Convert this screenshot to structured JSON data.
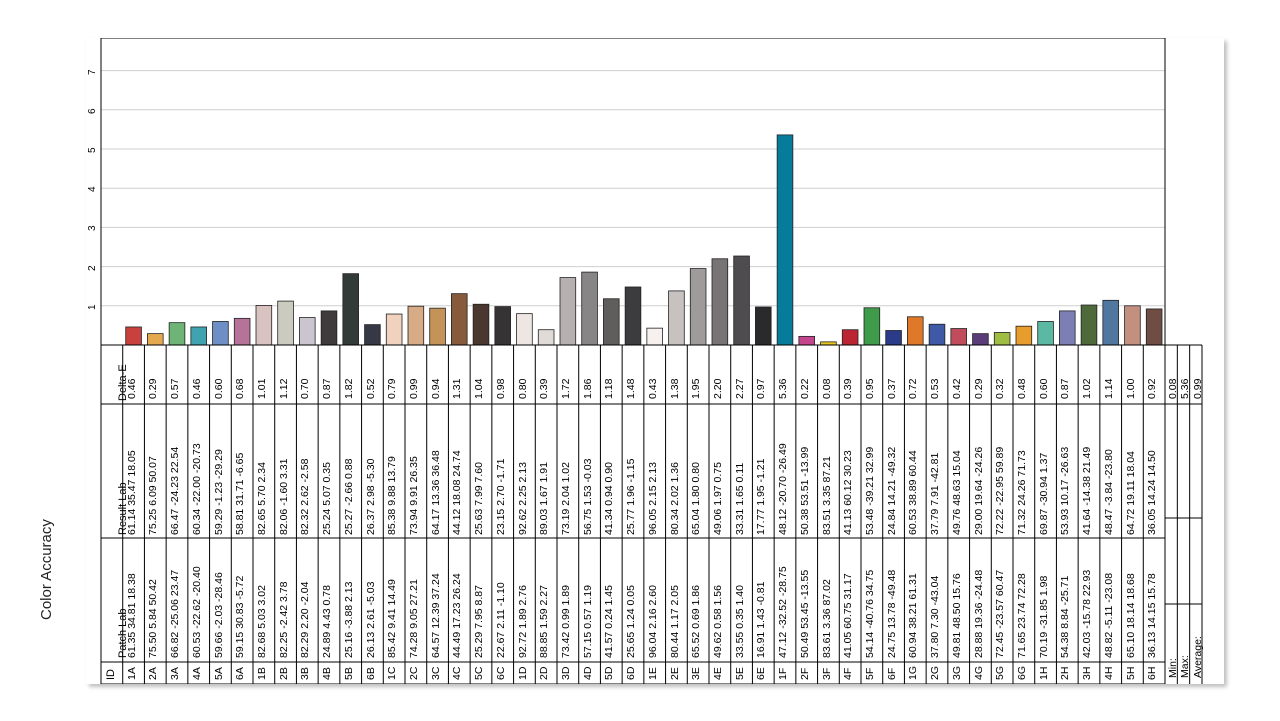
{
  "side_title": "Color Accuracy",
  "chart_data": {
    "type": "bar",
    "ylim": [
      0,
      7.5
    ],
    "yticks": [
      "1",
      "2",
      "3",
      "4",
      "5",
      "6",
      "7"
    ],
    "grid": true,
    "headers": {
      "id": "ID",
      "patch": "Patch Lab",
      "result": "Result Lab",
      "delta": "Delta-E"
    },
    "summary": {
      "min_label": "Min:",
      "max_label": "Max:",
      "avg_label": "Average:",
      "min": "0.08",
      "max": "5.36",
      "avg": "0.99"
    },
    "patches": [
      {
        "id": "1A",
        "patch": [
          "61.35",
          "34.81",
          "18.38"
        ],
        "result": [
          "61.14",
          "35.47",
          "18.05"
        ],
        "delta": "0.46",
        "value": 0.46,
        "color": "#c8413d"
      },
      {
        "id": "2A",
        "patch": [
          "75.50",
          "5.84",
          "50.42"
        ],
        "result": [
          "75.25",
          "6.09",
          "50.07"
        ],
        "delta": "0.29",
        "value": 0.29,
        "color": "#e4a84f"
      },
      {
        "id": "3A",
        "patch": [
          "66.82",
          "-25.06",
          "23.47"
        ],
        "result": [
          "66.47",
          "-24.23",
          "22.54"
        ],
        "delta": "0.57",
        "value": 0.57,
        "color": "#6fb377"
      },
      {
        "id": "4A",
        "patch": [
          "60.53",
          "-22.62",
          "-20.40"
        ],
        "result": [
          "60.34",
          "-22.00",
          "-20.73"
        ],
        "delta": "0.46",
        "value": 0.46,
        "color": "#3fa3b2"
      },
      {
        "id": "5A",
        "patch": [
          "59.66",
          "-2.03",
          "-28.46"
        ],
        "result": [
          "59.29",
          "-1.23",
          "-29.29"
        ],
        "delta": "0.60",
        "value": 0.6,
        "color": "#6d8fc6"
      },
      {
        "id": "6A",
        "patch": [
          "59.15",
          "30.83",
          "-5.72"
        ],
        "result": [
          "58.81",
          "31.71",
          "-6.65"
        ],
        "delta": "0.68",
        "value": 0.68,
        "color": "#b5739a"
      },
      {
        "id": "1B",
        "patch": [
          "82.68",
          "5.03",
          "3.02"
        ],
        "result": [
          "82.65",
          "5.70",
          "2.34"
        ],
        "delta": "1.01",
        "value": 1.01,
        "color": "#d9c3c0"
      },
      {
        "id": "2B",
        "patch": [
          "82.25",
          "-2.42",
          "3.78"
        ],
        "result": [
          "82.06",
          "-1.60",
          "3.31"
        ],
        "delta": "1.12",
        "value": 1.12,
        "color": "#cbcbbf"
      },
      {
        "id": "3B",
        "patch": [
          "82.29",
          "2.20",
          "-2.04"
        ],
        "result": [
          "82.32",
          "2.62",
          "-2.58"
        ],
        "delta": "0.70",
        "value": 0.7,
        "color": "#cbc5cf"
      },
      {
        "id": "4B",
        "patch": [
          "24.89",
          "4.43",
          "0.78"
        ],
        "result": [
          "25.24",
          "5.07",
          "0.35"
        ],
        "delta": "0.87",
        "value": 0.87,
        "color": "#3f3a3b"
      },
      {
        "id": "5B",
        "patch": [
          "25.16",
          "-3.88",
          "2.13"
        ],
        "result": [
          "25.27",
          "-2.66",
          "0.88"
        ],
        "delta": "1.82",
        "value": 1.82,
        "color": "#323b37"
      },
      {
        "id": "6B",
        "patch": [
          "26.13",
          "2.61",
          "-5.03"
        ],
        "result": [
          "26.37",
          "2.98",
          "-5.30"
        ],
        "delta": "0.52",
        "value": 0.52,
        "color": "#363845"
      },
      {
        "id": "1C",
        "patch": [
          "85.42",
          "9.41",
          "14.49"
        ],
        "result": [
          "85.38",
          "9.88",
          "13.79"
        ],
        "delta": "0.79",
        "value": 0.79,
        "color": "#f0d2be"
      },
      {
        "id": "2C",
        "patch": [
          "74.28",
          "9.05",
          "27.21"
        ],
        "result": [
          "73.94",
          "9.91",
          "26.35"
        ],
        "delta": "0.99",
        "value": 0.99,
        "color": "#d6ab86"
      },
      {
        "id": "3C",
        "patch": [
          "64.57",
          "12.39",
          "37.24"
        ],
        "result": [
          "64.17",
          "13.36",
          "36.48"
        ],
        "delta": "0.94",
        "value": 0.94,
        "color": "#c39357"
      },
      {
        "id": "4C",
        "patch": [
          "44.49",
          "17.23",
          "26.24"
        ],
        "result": [
          "44.12",
          "18.08",
          "24.74"
        ],
        "delta": "1.31",
        "value": 1.31,
        "color": "#875a3b"
      },
      {
        "id": "5C",
        "patch": [
          "25.29",
          "7.95",
          "8.87"
        ],
        "result": [
          "25.63",
          "7.99",
          "7.60"
        ],
        "delta": "1.04",
        "value": 1.04,
        "color": "#4a3830"
      },
      {
        "id": "6C",
        "patch": [
          "22.67",
          "2.11",
          "-1.10"
        ],
        "result": [
          "23.15",
          "2.70",
          "-1.71"
        ],
        "delta": "0.98",
        "value": 0.98,
        "color": "#363334"
      },
      {
        "id": "1D",
        "patch": [
          "92.72",
          "1.89",
          "2.76"
        ],
        "result": [
          "92.62",
          "2.25",
          "2.13"
        ],
        "delta": "0.80",
        "value": 0.8,
        "color": "#ede6e2"
      },
      {
        "id": "2D",
        "patch": [
          "88.85",
          "1.59",
          "2.27"
        ],
        "result": [
          "89.03",
          "1.67",
          "1.91"
        ],
        "delta": "0.39",
        "value": 0.39,
        "color": "#e1dbd7"
      },
      {
        "id": "3D",
        "patch": [
          "73.42",
          "0.99",
          "1.89"
        ],
        "result": [
          "73.19",
          "2.04",
          "1.02"
        ],
        "delta": "1.72",
        "value": 1.72,
        "color": "#b6b1b0"
      },
      {
        "id": "4D",
        "patch": [
          "57.15",
          "0.57",
          "1.19"
        ],
        "result": [
          "56.75",
          "1.53",
          "-0.03"
        ],
        "delta": "1.86",
        "value": 1.86,
        "color": "#888586"
      },
      {
        "id": "5D",
        "patch": [
          "41.57",
          "0.24",
          "1.45"
        ],
        "result": [
          "41.34",
          "0.94",
          "0.90"
        ],
        "delta": "1.18",
        "value": 1.18,
        "color": "#5f5e5d"
      },
      {
        "id": "6D",
        "patch": [
          "25.65",
          "1.24",
          "0.05"
        ],
        "result": [
          "25.77",
          "1.96",
          "-1.15"
        ],
        "delta": "1.48",
        "value": 1.48,
        "color": "#3c3b3d"
      },
      {
        "id": "1E",
        "patch": [
          "96.04",
          "2.16",
          "2.60"
        ],
        "result": [
          "96.05",
          "2.15",
          "2.13"
        ],
        "delta": "0.43",
        "value": 0.43,
        "color": "#f6f1ee"
      },
      {
        "id": "2E",
        "patch": [
          "80.44",
          "1.17",
          "2.05"
        ],
        "result": [
          "80.34",
          "2.02",
          "1.36"
        ],
        "delta": "1.38",
        "value": 1.38,
        "color": "#c7c2c0"
      },
      {
        "id": "3E",
        "patch": [
          "65.52",
          "0.69",
          "1.86"
        ],
        "result": [
          "65.04",
          "1.80",
          "0.80"
        ],
        "delta": "1.95",
        "value": 1.95,
        "color": "#a09b9b"
      },
      {
        "id": "4E",
        "patch": [
          "49.62",
          "0.58",
          "1.56"
        ],
        "result": [
          "49.06",
          "1.97",
          "0.75"
        ],
        "delta": "2.20",
        "value": 2.2,
        "color": "#787475"
      },
      {
        "id": "5E",
        "patch": [
          "33.55",
          "0.35",
          "1.40"
        ],
        "result": [
          "33.31",
          "1.65",
          "0.11"
        ],
        "delta": "2.27",
        "value": 2.27,
        "color": "#4e4c4e"
      },
      {
        "id": "6E",
        "patch": [
          "16.91",
          "1.43",
          "-0.81"
        ],
        "result": [
          "17.77",
          "1.95",
          "-1.21"
        ],
        "delta": "0.97",
        "value": 0.97,
        "color": "#2a292b"
      },
      {
        "id": "1F",
        "patch": [
          "47.12",
          "-32.52",
          "-28.75"
        ],
        "result": [
          "48.12",
          "-20.70",
          "-26.49"
        ],
        "delta": "5.36",
        "value": 5.36,
        "color": "#077b9a"
      },
      {
        "id": "2F",
        "patch": [
          "50.49",
          "53.45",
          "-13.55"
        ],
        "result": [
          "50.38",
          "53.51",
          "-13.99"
        ],
        "delta": "0.22",
        "value": 0.22,
        "color": "#c2458e"
      },
      {
        "id": "3F",
        "patch": [
          "83.61",
          "3.36",
          "87.02"
        ],
        "result": [
          "83.51",
          "3.35",
          "87.21"
        ],
        "delta": "0.08",
        "value": 0.08,
        "color": "#e8c51d"
      },
      {
        "id": "4F",
        "patch": [
          "41.05",
          "60.75",
          "31.17"
        ],
        "result": [
          "41.13",
          "60.12",
          "30.23"
        ],
        "delta": "0.39",
        "value": 0.39,
        "color": "#bb2433"
      },
      {
        "id": "5F",
        "patch": [
          "54.14",
          "-40.76",
          "34.75"
        ],
        "result": [
          "53.48",
          "-39.21",
          "32.99"
        ],
        "delta": "0.95",
        "value": 0.95,
        "color": "#3f9a4a"
      },
      {
        "id": "6F",
        "patch": [
          "24.75",
          "13.78",
          "-49.48"
        ],
        "result": [
          "24.84",
          "14.21",
          "-49.32"
        ],
        "delta": "0.37",
        "value": 0.37,
        "color": "#2c3a8a"
      },
      {
        "id": "1G",
        "patch": [
          "60.94",
          "38.21",
          "61.31"
        ],
        "result": [
          "60.53",
          "38.89",
          "60.44"
        ],
        "delta": "0.72",
        "value": 0.72,
        "color": "#e0782a"
      },
      {
        "id": "2G",
        "patch": [
          "37.80",
          "7.30",
          "-43.04"
        ],
        "result": [
          "37.79",
          "7.91",
          "-42.81"
        ],
        "delta": "0.53",
        "value": 0.53,
        "color": "#3e5aa6"
      },
      {
        "id": "3G",
        "patch": [
          "49.81",
          "48.50",
          "15.76"
        ],
        "result": [
          "49.76",
          "48.63",
          "15.04"
        ],
        "delta": "0.42",
        "value": 0.42,
        "color": "#c14d5c"
      },
      {
        "id": "4G",
        "patch": [
          "28.88",
          "19.36",
          "-24.48"
        ],
        "result": [
          "29.00",
          "19.64",
          "-24.26"
        ],
        "delta": "0.29",
        "value": 0.29,
        "color": "#5a3d78"
      },
      {
        "id": "5G",
        "patch": [
          "72.45",
          "-23.57",
          "60.47"
        ],
        "result": [
          "72.22",
          "-22.95",
          "59.89"
        ],
        "delta": "0.32",
        "value": 0.32,
        "color": "#9fbd43"
      },
      {
        "id": "6G",
        "patch": [
          "71.65",
          "23.74",
          "72.28"
        ],
        "result": [
          "71.32",
          "24.26",
          "71.73"
        ],
        "delta": "0.48",
        "value": 0.48,
        "color": "#e79d2b"
      },
      {
        "id": "1H",
        "patch": [
          "70.19",
          "-31.85",
          "1.98"
        ],
        "result": [
          "69.87",
          "-30.94",
          "1.37"
        ],
        "delta": "0.60",
        "value": 0.6,
        "color": "#5ab8a3"
      },
      {
        "id": "2H",
        "patch": [
          "54.38",
          "8.84",
          "-25.71"
        ],
        "result": [
          "53.93",
          "10.17",
          "-26.63"
        ],
        "delta": "0.87",
        "value": 0.87,
        "color": "#7c7fb3"
      },
      {
        "id": "3H",
        "patch": [
          "42.03",
          "-15.78",
          "22.93"
        ],
        "result": [
          "41.64",
          "-14.38",
          "21.49"
        ],
        "delta": "1.02",
        "value": 1.02,
        "color": "#4f6a3a"
      },
      {
        "id": "4H",
        "patch": [
          "48.82",
          "-5.11",
          "-23.08"
        ],
        "result": [
          "48.47",
          "-3.84",
          "-23.80"
        ],
        "delta": "1.14",
        "value": 1.14,
        "color": "#4f77a0"
      },
      {
        "id": "5H",
        "patch": [
          "65.10",
          "18.14",
          "18.68"
        ],
        "result": [
          "64.72",
          "19.11",
          "18.04"
        ],
        "delta": "1.00",
        "value": 1.0,
        "color": "#c38f7e"
      },
      {
        "id": "6H",
        "patch": [
          "36.13",
          "14.15",
          "15.78"
        ],
        "result": [
          "36.05",
          "14.24",
          "14.50"
        ],
        "delta": "0.92",
        "value": 0.92,
        "color": "#6f4d45"
      }
    ]
  }
}
